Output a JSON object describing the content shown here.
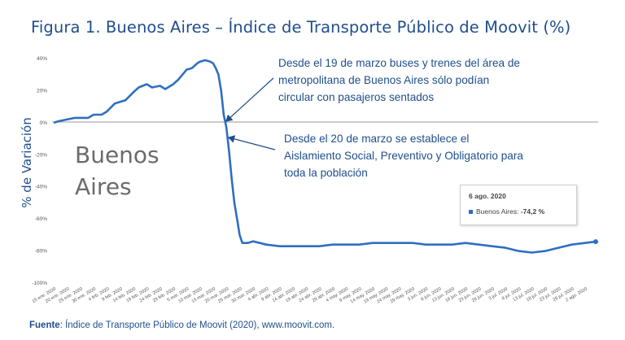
{
  "title": "Figura 1. Buenos Aires – Índice de Transporte Público de Moovit (%)",
  "ylabel": "% de Variación",
  "watermark": [
    "Buenos",
    "Aires"
  ],
  "annotations": [
    {
      "lines": [
        "Desde el 19 de marzo buses y trenes del área de",
        "metropolitana de Buenos Aires sólo podían",
        "circular con pasajeros sentados"
      ]
    },
    {
      "lines": [
        "Desde el 20 de marzo se establece el",
        "Aislamiento Social, Preventivo y Obligatorio para",
        "toda la población"
      ]
    }
  ],
  "tooltip": {
    "date": "6 ago. 2020",
    "series": "Buenos Aires:",
    "value": "-74,2 %"
  },
  "source": {
    "label": "Fuente",
    "text": ": Índice de Transporte Público de Moovit (2020), www.moovit.com."
  },
  "colors": {
    "line": "#2f6fc0",
    "title": "#1f4e8c",
    "arrow": "#1f4e8c"
  },
  "chart_data": {
    "type": "line",
    "title": "Figura 1. Buenos Aires – Índice de Transporte Público de Moovit (%)",
    "xlabel": "",
    "ylabel": "% de Variación",
    "ylim": [
      -100,
      40
    ],
    "yticks": [
      "40%",
      "20%",
      "0%",
      "-20%",
      "-40%",
      "-60%",
      "-80%",
      "-100%"
    ],
    "grid": false,
    "zero_line": true,
    "x_tick_labels": [
      "15 ene. 2020",
      "20 ene. 2020",
      "25 ene. 2020",
      "30 ene. 2020",
      "4 feb. 2020",
      "9 feb. 2020",
      "14 feb. 2020",
      "19 feb. 2020",
      "24 feb. 2020",
      "29 feb. 2020",
      "5 mar. 2020",
      "10 mar. 2020",
      "15 mar. 2020",
      "20 mar. 2020",
      "25 mar. 2020",
      "30 mar. 2020",
      "4 abr. 2020",
      "9 abr. 2020",
      "14 abr. 2020",
      "19 abr. 2020",
      "24 abr. 2020",
      "29 abr. 2020",
      "4 may. 2020",
      "9 may. 2020",
      "14 may. 2020",
      "19 may. 2020",
      "24 may. 2020",
      "29 may. 2020",
      "3 jun. 2020",
      "8 jun. 2020",
      "13 jun. 2020",
      "18 jun. 2020",
      "23 jun. 2020",
      "28 jun. 2020",
      "3 jul. 2020",
      "8 jul. 2020",
      "13 jul. 2020",
      "18 jul. 2020",
      "23 jul. 2020",
      "28 jul. 2020",
      "2 ago. 2020"
    ],
    "series": [
      {
        "name": "Buenos Aires",
        "x": [
          "15 ene. 2020",
          "17 ene. 2020",
          "20 ene. 2020",
          "23 ene. 2020",
          "25 ene. 2020",
          "28 ene. 2020",
          "30 ene. 2020",
          "2 feb. 2020",
          "4 feb. 2020",
          "7 feb. 2020",
          "9 feb. 2020",
          "11 feb. 2020",
          "14 feb. 2020",
          "16 feb. 2020",
          "19 feb. 2020",
          "21 feb. 2020",
          "24 feb. 2020",
          "26 feb. 2020",
          "29 feb. 2020",
          "2 mar. 2020",
          "5 mar. 2020",
          "7 mar. 2020",
          "9 mar. 2020",
          "10 mar. 2020",
          "12 mar. 2020",
          "14 mar. 2020",
          "15 mar. 2020",
          "16 mar. 2020",
          "17 mar. 2020",
          "18 mar. 2020",
          "19 mar. 2020",
          "20 mar. 2020",
          "21 mar. 2020",
          "22 mar. 2020",
          "23 mar. 2020",
          "24 mar. 2020",
          "25 mar. 2020",
          "26 mar. 2020",
          "28 mar. 2020",
          "30 mar. 2020",
          "4 abr. 2020",
          "9 abr. 2020",
          "14 abr. 2020",
          "19 abr. 2020",
          "24 abr. 2020",
          "29 abr. 2020",
          "4 may. 2020",
          "9 may. 2020",
          "14 may. 2020",
          "19 may. 2020",
          "24 may. 2020",
          "29 may. 2020",
          "3 jun. 2020",
          "8 jun. 2020",
          "13 jun. 2020",
          "18 jun. 2020",
          "23 jun. 2020",
          "28 jun. 2020",
          "3 jul. 2020",
          "8 jul. 2020",
          "13 jul. 2020",
          "18 jul. 2020",
          "23 jul. 2020",
          "28 jul. 2020",
          "2 ago. 2020",
          "6 ago. 2020"
        ],
        "values": [
          0,
          1,
          2,
          3,
          3,
          3,
          5,
          5,
          7,
          12,
          13,
          14,
          19,
          22,
          24,
          22,
          23,
          21,
          24,
          27,
          33,
          34,
          37,
          38,
          39,
          38,
          37,
          34,
          30,
          20,
          5,
          -3,
          -18,
          -35,
          -50,
          -60,
          -70,
          -75,
          -75,
          -74,
          -76,
          -77,
          -77,
          -77,
          -77,
          -76,
          -76,
          -76,
          -75,
          -75,
          -75,
          -75,
          -76,
          -76,
          -76,
          -75,
          -76,
          -77,
          -78,
          -80,
          -81,
          -80,
          -78,
          -76,
          -75,
          -74.2
        ]
      }
    ]
  }
}
